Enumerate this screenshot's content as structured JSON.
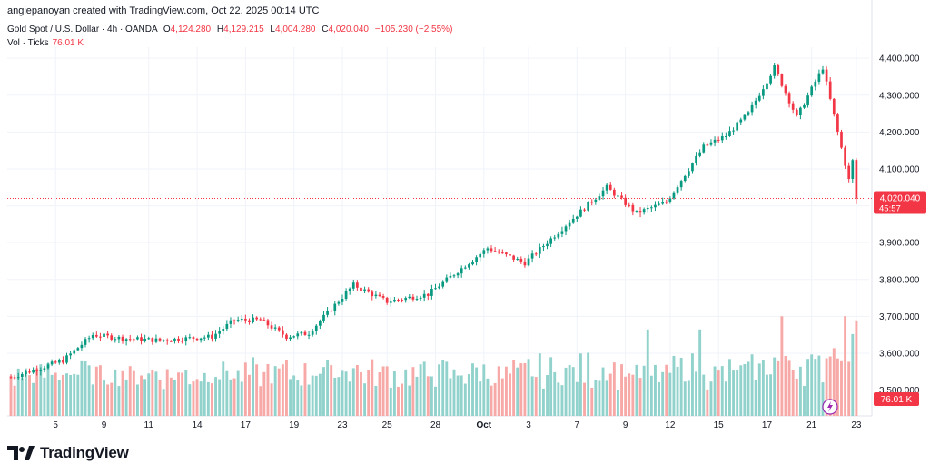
{
  "header": {
    "credit": "angiepanoyan created with TradingView.com, Oct 22, 2025 00:14 UTC",
    "symbol": "Gold Spot / U.S. Dollar · 4h · OANDA",
    "o_label": "O",
    "o_value": "4,124.280",
    "h_label": "H",
    "h_value": "4,129.215",
    "l_label": "L",
    "l_value": "4,004.280",
    "c_label": "C",
    "c_value": "4,020.040",
    "change": "−105.230 (−2.55%)",
    "vol_label": "Vol · Ticks",
    "vol_value": "76.01 K"
  },
  "price_badge": {
    "price": "4,020.040",
    "countdown": "45:57"
  },
  "vol_badge": "76.01 K",
  "brand": {
    "name": "TradingView"
  },
  "colors": {
    "up": "#089981",
    "down": "#f23645",
    "vol_up": "#92d2cc",
    "vol_down": "#f7a9a7",
    "grid": "#f0f3fa"
  },
  "chart_data": {
    "type": "candlestick",
    "title": "Gold Spot / U.S. Dollar · 4h · OANDA",
    "y_axis": {
      "min": 3430,
      "max": 4430,
      "ticks": [
        3500,
        3600,
        3700,
        3800,
        3900,
        4000,
        4100,
        4200,
        4300,
        4400
      ],
      "tick_labels": [
        "3,500.000",
        "3,600.000",
        "3,700.000",
        "3,800.000",
        "3,900.000",
        "4,000.000",
        "4,100.000",
        "4,200.000",
        "4,300.000",
        "4,400.000"
      ]
    },
    "x_axis": {
      "labels": [
        "5",
        "9",
        "11",
        "14",
        "17",
        "19",
        "23",
        "25",
        "28",
        "Oct",
        "3",
        "7",
        "9",
        "12",
        "15",
        "17",
        "21",
        "23"
      ],
      "label_bar_index": [
        12,
        25,
        37,
        50,
        63,
        76,
        89,
        101,
        114,
        127,
        139,
        152,
        165,
        177,
        190,
        203,
        215,
        227
      ]
    },
    "last_price": 4020.04,
    "volume_panel": {
      "label": "Vol · Ticks",
      "last": "76.01 K"
    },
    "keypoints": [
      {
        "bar": 0,
        "price": 3535
      },
      {
        "bar": 14,
        "price": 3580
      },
      {
        "bar": 22,
        "price": 3650
      },
      {
        "bar": 30,
        "price": 3640
      },
      {
        "bar": 40,
        "price": 3635
      },
      {
        "bar": 54,
        "price": 3645
      },
      {
        "bar": 60,
        "price": 3690
      },
      {
        "bar": 67,
        "price": 3690
      },
      {
        "bar": 74,
        "price": 3645
      },
      {
        "bar": 80,
        "price": 3655
      },
      {
        "bar": 92,
        "price": 3785
      },
      {
        "bar": 101,
        "price": 3740
      },
      {
        "bar": 112,
        "price": 3760
      },
      {
        "bar": 128,
        "price": 3885
      },
      {
        "bar": 138,
        "price": 3845
      },
      {
        "bar": 160,
        "price": 4050
      },
      {
        "bar": 168,
        "price": 3980
      },
      {
        "bar": 176,
        "price": 4010
      },
      {
        "bar": 186,
        "price": 4160
      },
      {
        "bar": 192,
        "price": 4190
      },
      {
        "bar": 198,
        "price": 4250
      },
      {
        "bar": 205,
        "price": 4375
      },
      {
        "bar": 211,
        "price": 4240
      },
      {
        "bar": 218,
        "price": 4375
      },
      {
        "bar": 222,
        "price": 4200
      },
      {
        "bar": 225,
        "price": 4070
      },
      {
        "bar": 227,
        "price": 4020
      }
    ],
    "bars": 228
  }
}
